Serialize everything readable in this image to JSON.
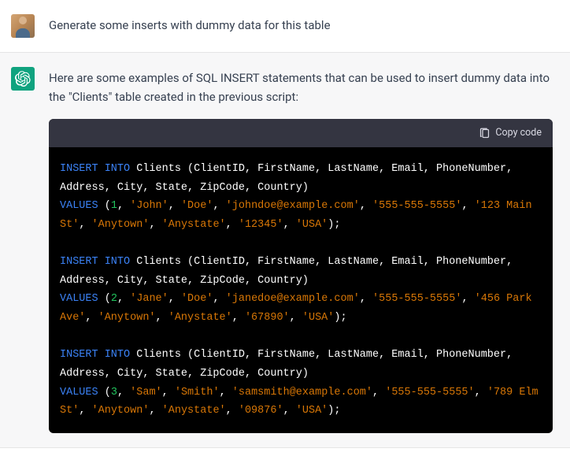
{
  "user_message": {
    "text": "Generate some inserts with dummy data for this table"
  },
  "assistant_message": {
    "intro": "Here are some examples of SQL INSERT statements that can be used to insert dummy data into the \"Clients\" table created in the previous script:",
    "copy_label": "Copy code",
    "code": {
      "table": "Clients",
      "columns": [
        "ClientID",
        "FirstName",
        "LastName",
        "Email",
        "PhoneNumber",
        "Address",
        "City",
        "State",
        "ZipCode",
        "Country"
      ],
      "rows": [
        {
          "id": 1,
          "values": [
            "'John'",
            "'Doe'",
            "'johndoe@example.com'",
            "'555-555-5555'",
            "'123 Main St'",
            "'Anytown'",
            "'Anystate'",
            "'12345'",
            "'USA'"
          ]
        },
        {
          "id": 2,
          "values": [
            "'Jane'",
            "'Doe'",
            "'janedoe@example.com'",
            "'555-555-5555'",
            "'456 Park Ave'",
            "'Anytown'",
            "'Anystate'",
            "'67890'",
            "'USA'"
          ]
        },
        {
          "id": 3,
          "values": [
            "'Sam'",
            "'Smith'",
            "'samsmith@example.com'",
            "'555-555-5555'",
            "'789 Elm St'",
            "'Anytown'",
            "'Anystate'",
            "'09876'",
            "'USA'"
          ]
        }
      ],
      "kw_insert": "INSERT INTO",
      "kw_values": "VALUES"
    }
  },
  "colors": {
    "user_bg": "#ffffff",
    "assistant_bg": "#f7f7f8",
    "code_bg": "#000000",
    "code_header_bg": "#343541",
    "keyword": "#3b82f6",
    "number": "#22c55e",
    "string": "#d97706",
    "bot_avatar": "#10a37f",
    "text": "#374151"
  }
}
